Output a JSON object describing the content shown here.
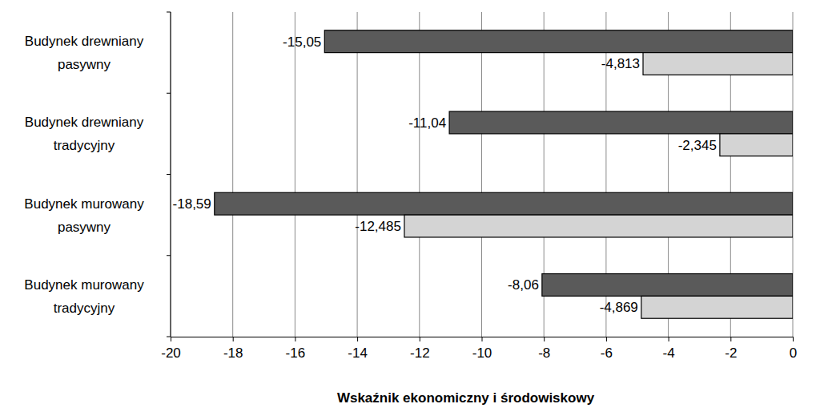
{
  "chart_data": {
    "type": "bar",
    "orientation": "horizontal",
    "xlabel": "Wskaźnik ekonomiczny i środowiskowy",
    "categories": [
      "Budynek drewniany pasywny",
      "Budynek drewniany tradycyjny",
      "Budynek murowany pasywny",
      "Budynek murowany tradycyjny"
    ],
    "series": [
      {
        "color": "#5a5a5a",
        "values": [
          -15.05,
          -11.04,
          -18.59,
          -8.06
        ],
        "value_labels": [
          "-15,05",
          "-11,04",
          "-18,59",
          "-8,06"
        ]
      },
      {
        "color": "#d4d4d4",
        "values": [
          -4.813,
          -2.345,
          -12.485,
          -4.869
        ],
        "value_labels": [
          "-4,813",
          "-2,345",
          "-12,485",
          "-4,869"
        ]
      }
    ],
    "xlim": [
      -20,
      0
    ],
    "xticks": [
      -20,
      -18,
      -16,
      -14,
      -12,
      -10,
      -8,
      -6,
      -4,
      -2,
      0
    ],
    "grid": true,
    "data_labels": true
  }
}
